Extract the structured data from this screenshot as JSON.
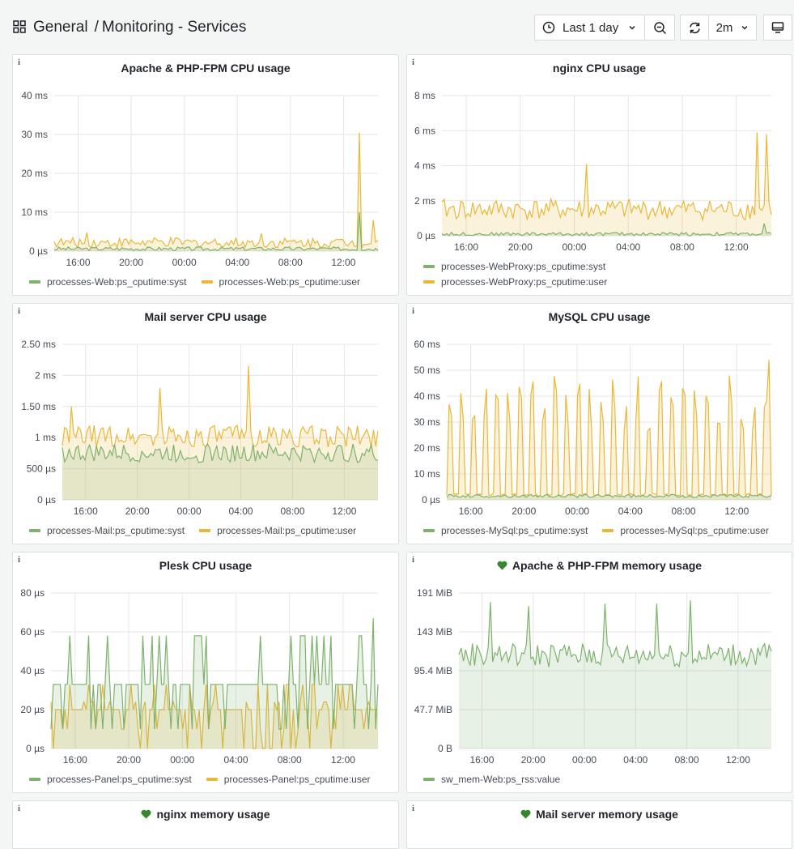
{
  "breadcrumb": {
    "folder": "General",
    "separator": "/",
    "dashboard": "Monitoring - Services"
  },
  "toolbar": {
    "time_range": "Last 1 day",
    "refresh_interval": "2m"
  },
  "colors": {
    "green": "#7eb26d",
    "yellow": "#eab839"
  },
  "panels": [
    {
      "title": "Apache & PHP-FPM CPU usage",
      "info": "i",
      "heart": false,
      "legend": [
        "processes-Web:ps_cputime:syst",
        "processes-Web:ps_cputime:user"
      ],
      "chart_data": {
        "type": "area",
        "series_names": [
          "processes-Web:ps_cputime:syst",
          "processes-Web:ps_cputime:user"
        ],
        "y_ticks": [
          "40 ms",
          "30 ms",
          "20 ms",
          "10 ms",
          "0 µs"
        ],
        "x_ticks": [
          "16:00",
          "20:00",
          "00:00",
          "04:00",
          "08:00",
          "12:00"
        ],
        "ylim": [
          0,
          40
        ],
        "series": [
          {
            "name": "syst",
            "base": 0.6,
            "noise": 0.5,
            "spikes": [
              [
                0.945,
                10
              ]
            ]
          },
          {
            "name": "user",
            "base": 2.2,
            "noise": 1.3,
            "spikes": [
              [
                0.945,
                30.5
              ],
              [
                0.985,
                8
              ],
              [
                0.64,
                4.5
              ],
              [
                0.1,
                4.8
              ]
            ]
          }
        ]
      }
    },
    {
      "title": "nginx CPU usage",
      "info": "i",
      "heart": false,
      "legend": [
        "processes-WebProxy:ps_cputime:syst",
        "processes-WebProxy:ps_cputime:user"
      ],
      "chart_data": {
        "type": "area",
        "series_names": [
          "processes-WebProxy:ps_cputime:syst",
          "processes-WebProxy:ps_cputime:user"
        ],
        "y_ticks": [
          "8 ms",
          "6 ms",
          "4 ms",
          "2 ms",
          "0 µs"
        ],
        "x_ticks": [
          "16:00",
          "20:00",
          "00:00",
          "04:00",
          "08:00",
          "12:00"
        ],
        "ylim": [
          0,
          8
        ],
        "series": [
          {
            "name": "syst",
            "base": 0.1,
            "noise": 0.1,
            "spikes": [
              [
                0.98,
                0.7
              ]
            ]
          },
          {
            "name": "user",
            "base": 1.5,
            "noise": 0.6,
            "spikes": [
              [
                0.44,
                4.1
              ],
              [
                0.96,
                5.9
              ],
              [
                0.985,
                5.8
              ]
            ]
          }
        ]
      }
    },
    {
      "title": "Mail server CPU usage",
      "info": "i",
      "heart": false,
      "legend": [
        "processes-Mail:ps_cputime:syst",
        "processes-Mail:ps_cputime:user"
      ],
      "chart_data": {
        "type": "area",
        "series_names": [
          "processes-Mail:ps_cputime:syst",
          "processes-Mail:ps_cputime:user"
        ],
        "y_ticks": [
          "2.50 ms",
          "2 ms",
          "1.50 ms",
          "1 ms",
          "500 µs",
          "0 µs"
        ],
        "x_ticks": [
          "16:00",
          "20:00",
          "00:00",
          "04:00",
          "08:00",
          "12:00"
        ],
        "ylim": [
          0,
          2.5
        ],
        "series": [
          {
            "name": "syst",
            "base": 0.75,
            "noise": 0.15,
            "spikes": []
          },
          {
            "name": "user",
            "base": 1.02,
            "noise": 0.18,
            "spikes": [
              [
                0.03,
                1.5
              ],
              [
                0.31,
                1.8
              ],
              [
                0.59,
                2.15
              ]
            ]
          }
        ]
      }
    },
    {
      "title": "MySQL CPU usage",
      "info": "i",
      "heart": false,
      "legend": [
        "processes-MySql:ps_cputime:syst",
        "processes-MySql:ps_cputime:user"
      ],
      "chart_data": {
        "type": "area",
        "series_names": [
          "processes-MySql:ps_cputime:syst",
          "processes-MySql:ps_cputime:user"
        ],
        "y_ticks": [
          "60 ms",
          "50 ms",
          "40 ms",
          "30 ms",
          "20 ms",
          "10 ms",
          "0 µs"
        ],
        "x_ticks": [
          "16:00",
          "20:00",
          "00:00",
          "04:00",
          "08:00",
          "12:00"
        ],
        "ylim": [
          0,
          60
        ],
        "series": [
          {
            "name": "syst",
            "base": 1.5,
            "noise": 0.6,
            "spikes": []
          },
          {
            "name": "user",
            "base": 1.5,
            "noise": 1,
            "periodic": [
              48,
              42,
              3,
              40,
              4
            ],
            "spikes": [
              [
                0.995,
                54
              ]
            ]
          }
        ]
      }
    },
    {
      "title": "Plesk CPU usage",
      "info": "i",
      "heart": false,
      "legend": [
        "processes-Panel:ps_cputime:syst",
        "processes-Panel:ps_cputime:user"
      ],
      "chart_data": {
        "type": "area",
        "series_names": [
          "processes-Panel:ps_cputime:syst",
          "processes-Panel:ps_cputime:user"
        ],
        "y_ticks": [
          "80 µs",
          "60 µs",
          "40 µs",
          "20 µs",
          "0 µs"
        ],
        "x_ticks": [
          "16:00",
          "20:00",
          "00:00",
          "04:00",
          "08:00",
          "12:00"
        ],
        "ylim": [
          0,
          80
        ],
        "series": [
          {
            "name": "syst",
            "base": 33,
            "noise": 0,
            "steps": [
              10,
              33,
              58
            ],
            "spikes": [
              [
                0.985,
                67
              ]
            ]
          },
          {
            "name": "user",
            "base": 20,
            "noise": 0,
            "steps": [
              0,
              10,
              24,
              33
            ],
            "spikes": []
          }
        ]
      }
    },
    {
      "title": "Apache & PHP-FPM memory usage",
      "info": "i",
      "heart": true,
      "legend": [
        "sw_mem-Web:ps_rss:value"
      ],
      "chart_data": {
        "type": "area",
        "series_names": [
          "sw_mem-Web:ps_rss:value"
        ],
        "y_ticks": [
          "191 MiB",
          "143 MiB",
          "95.4 MiB",
          "47.7 MiB",
          "0 B"
        ],
        "x_ticks": [
          "16:00",
          "20:00",
          "00:00",
          "04:00",
          "08:00",
          "12:00"
        ],
        "ylim": [
          0,
          191
        ],
        "series": [
          {
            "name": "value",
            "base": 115,
            "noise": 15,
            "spikes": [
              [
                0.1,
                180
              ],
              [
                0.22,
                175
              ],
              [
                0.74,
                182
              ],
              [
                0.63,
                178
              ],
              [
                0.47,
                178
              ]
            ]
          }
        ]
      }
    },
    {
      "title": "nginx memory usage",
      "info": "i",
      "heart": true,
      "legend": [],
      "chart_data": null
    },
    {
      "title": "Mail server memory usage",
      "info": "i",
      "heart": true,
      "legend": [],
      "chart_data": null
    }
  ]
}
